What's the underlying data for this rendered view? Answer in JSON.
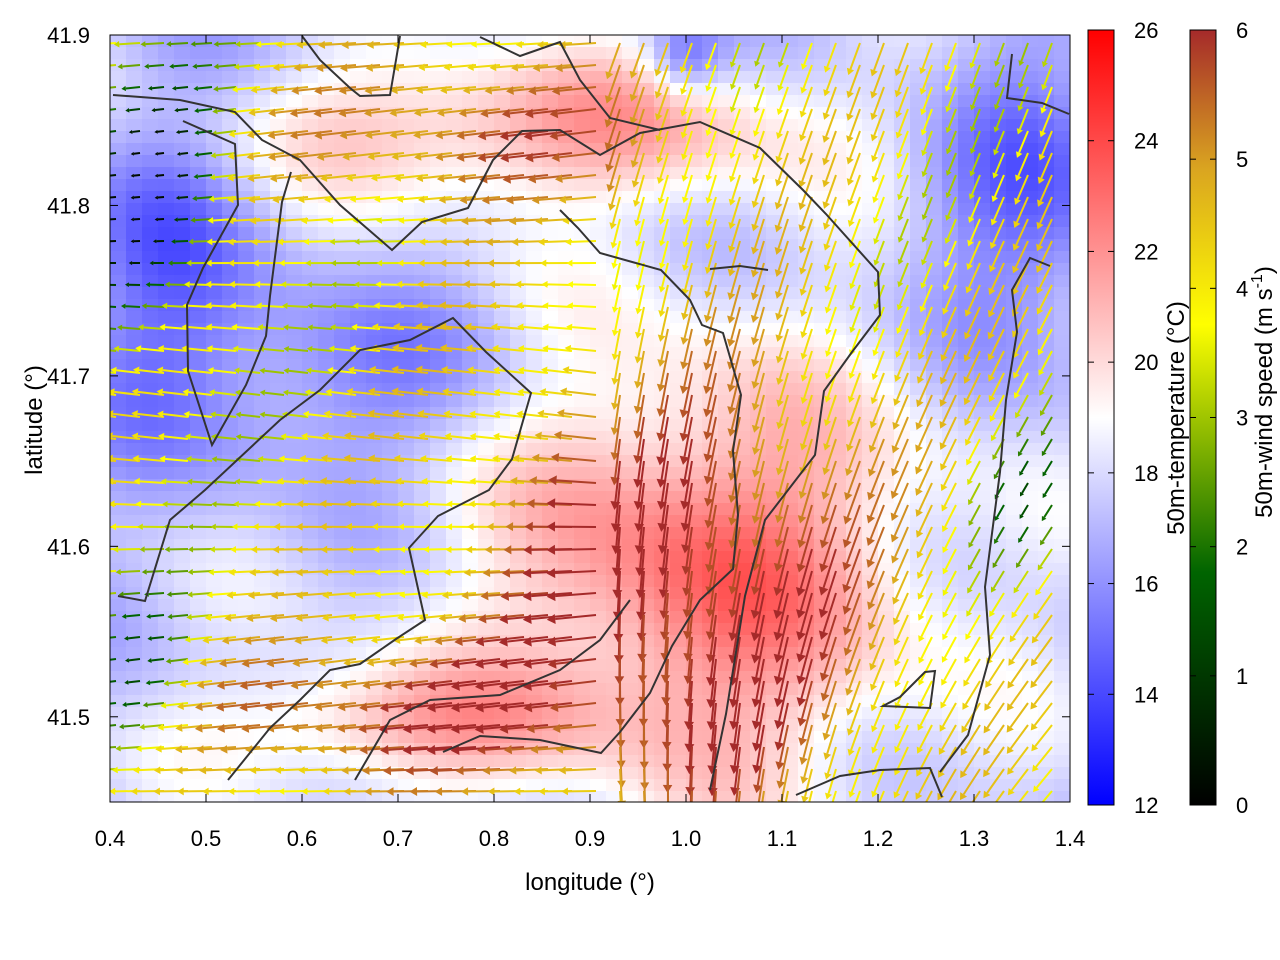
{
  "chart_data": {
    "type": "heatmap",
    "title": "",
    "xlabel": "longitude (°)",
    "ylabel": "latitude (°)",
    "xlim": [
      0.4,
      1.4
    ],
    "ylim": [
      41.45,
      41.9
    ],
    "x_ticks": [
      "0.4",
      "0.5",
      "0.6",
      "0.7",
      "0.8",
      "0.9",
      "1.0",
      "1.1",
      "1.2",
      "1.3",
      "1.4"
    ],
    "y_ticks": [
      "41.5",
      "41.6",
      "41.7",
      "41.8",
      "41.9"
    ],
    "grid": false,
    "temperature_colorbar": {
      "label": "50m-temperature (°C)",
      "range": [
        12,
        26
      ],
      "ticks": [
        "12",
        "14",
        "16",
        "18",
        "20",
        "22",
        "24",
        "26"
      ],
      "colors": [
        "#0000ff",
        "#ffffff",
        "#ff0000"
      ]
    },
    "wind_colorbar": {
      "label_main": "50m-wind speed (m s",
      "label_sup": "-1",
      "label_end": ")",
      "range": [
        0,
        6
      ],
      "ticks": [
        "0",
        "1",
        "2",
        "3",
        "4",
        "5",
        "6"
      ],
      "colors": [
        "#000000",
        "#006400",
        "#ffff00",
        "#daa520",
        "#a52a2a"
      ]
    },
    "contour_color": "#333333"
  }
}
